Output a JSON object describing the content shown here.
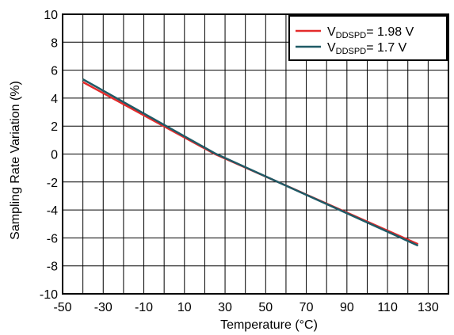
{
  "chart_data": {
    "type": "line",
    "title": "",
    "xlabel": "Temperature (°C)",
    "ylabel": "Sampling Rate Variation (%)",
    "xlim": [
      -50,
      140
    ],
    "ylim": [
      -10,
      10
    ],
    "xticks": [
      -50,
      -30,
      -10,
      10,
      30,
      50,
      70,
      90,
      110,
      130
    ],
    "yticks": [
      -10,
      -8,
      -6,
      -4,
      -2,
      0,
      2,
      4,
      6,
      8,
      10
    ],
    "grid": true,
    "legend_position": "top-right",
    "series": [
      {
        "name": "VDDSPD= 1.98 V",
        "legend_main": "V",
        "legend_sub": "DDSPD",
        "legend_rest": "= 1.98 V",
        "color": "#e32b2b",
        "x": [
          -40,
          25,
          125
        ],
        "y": [
          5.15,
          0.0,
          -6.45
        ]
      },
      {
        "name": "VDDSPD= 1.7 V",
        "legend_main": "V",
        "legend_sub": "DDSPD",
        "legend_rest": "= 1.7 V",
        "color": "#1f5a66",
        "x": [
          -40,
          25,
          125
        ],
        "y": [
          5.35,
          0.05,
          -6.55
        ]
      }
    ]
  }
}
